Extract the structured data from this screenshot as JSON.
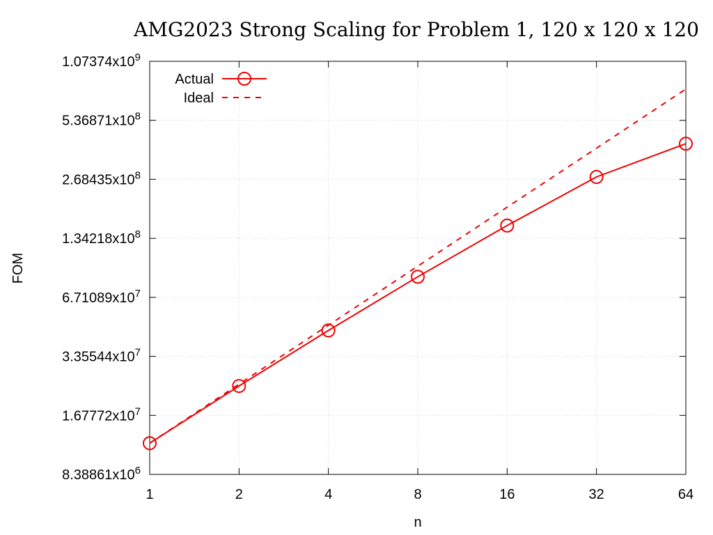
{
  "chart_data": {
    "type": "line",
    "title": "AMG2023 Strong Scaling for Problem 1, 120 x 120 x 120",
    "xlabel": "n",
    "ylabel": "FOM",
    "x_scale": "log2",
    "y_scale": "log2",
    "xlim": [
      1,
      64
    ],
    "ylim": [
      8388608,
      1073741824
    ],
    "grid": true,
    "legend_position": "top-left",
    "x_ticks": [
      "1",
      "2",
      "4",
      "8",
      "16",
      "32",
      "64"
    ],
    "y_ticks": [
      {
        "mantissa": "8.38861x10",
        "exp": "6",
        "value": 8388608
      },
      {
        "mantissa": "1.67772x10",
        "exp": "7",
        "value": 16777216
      },
      {
        "mantissa": "3.35544x10",
        "exp": "7",
        "value": 33554432
      },
      {
        "mantissa": "6.71089x10",
        "exp": "7",
        "value": 67108864
      },
      {
        "mantissa": "1.34218x10",
        "exp": "8",
        "value": 134217728
      },
      {
        "mantissa": "2.68435x10",
        "exp": "8",
        "value": 268435456
      },
      {
        "mantissa": "5.36871x10",
        "exp": "8",
        "value": 536870912
      },
      {
        "mantissa": "1.07374x10",
        "exp": "9",
        "value": 1073741824
      }
    ],
    "x": [
      1,
      2,
      4,
      8,
      16,
      32,
      64
    ],
    "series": [
      {
        "name": "Actual",
        "style": "solid-circles",
        "color": "#ee0000",
        "values": [
          12100000,
          23700000,
          45500000,
          85500000,
          156000000,
          276000000,
          408000000
        ]
      },
      {
        "name": "Ideal",
        "style": "dashed",
        "color": "#ee0000",
        "values": [
          12100000,
          24200000,
          48400000,
          96800000,
          193600000,
          387200000,
          774400000
        ]
      }
    ]
  }
}
